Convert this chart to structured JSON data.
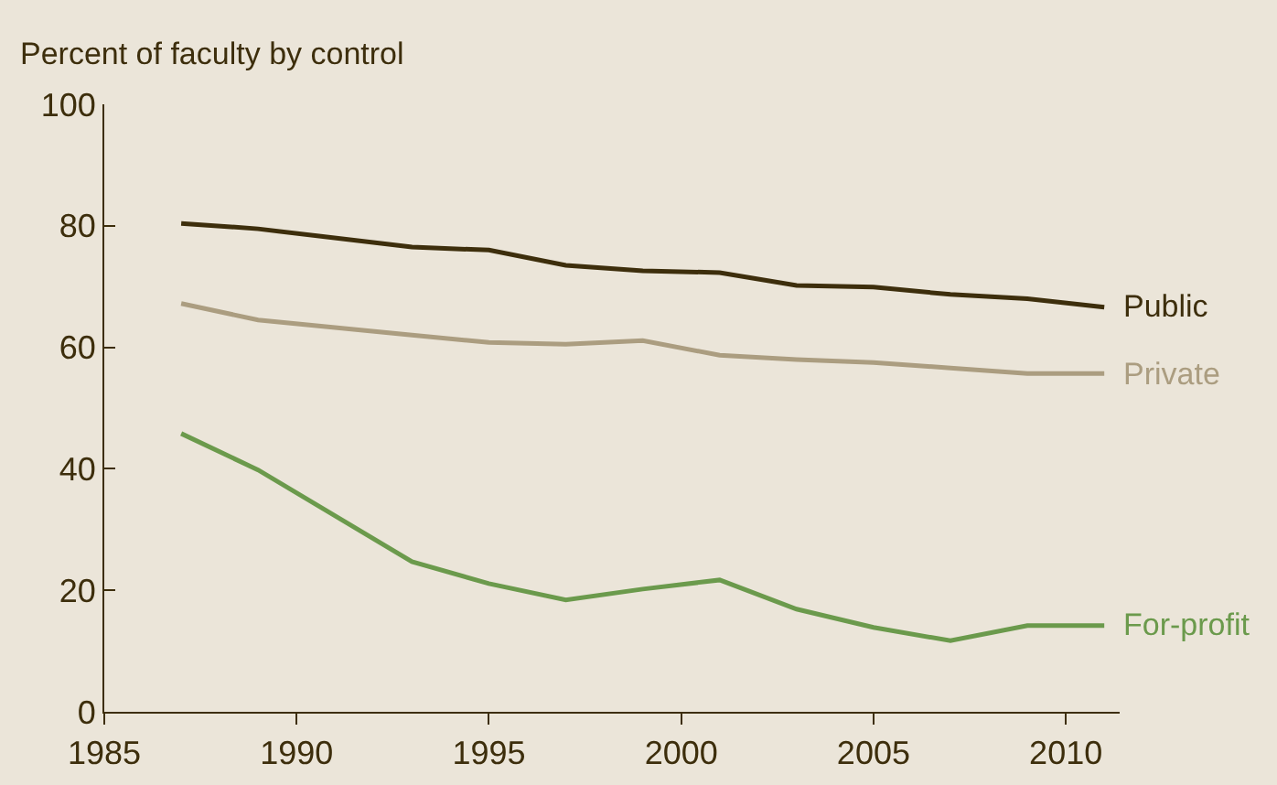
{
  "chart_data": {
    "type": "line",
    "ylabel": "Percent of faculty by control",
    "x": [
      1987,
      1989,
      1993,
      1995,
      1997,
      1999,
      2001,
      2003,
      2005,
      2007,
      2009,
      2011
    ],
    "series": [
      {
        "name": "Public",
        "color": "#3d2e0c",
        "values": [
          80.4,
          79.5,
          76.5,
          76,
          73.5,
          72.6,
          72.3,
          70.2,
          69.9,
          68.7,
          68,
          66.6
        ]
      },
      {
        "name": "Private",
        "color": "#ab9d80",
        "values": [
          67.2,
          64.5,
          62,
          60.8,
          60.5,
          61.1,
          58.7,
          58,
          57.5,
          56.6,
          55.7,
          55.7
        ]
      },
      {
        "name": "For-profit",
        "color": "#6b9a4c",
        "values": [
          45.8,
          39.8,
          24.7,
          21.1,
          18.4,
          20.2,
          21.7,
          16.9,
          13.9,
          11.7,
          14.2,
          14.2
        ]
      }
    ],
    "xlim": [
      1985,
      2011.4
    ],
    "xticks": [
      1985,
      1990,
      1995,
      2000,
      2005,
      2010
    ],
    "ylim": [
      0,
      100
    ],
    "yticks": [
      0,
      20,
      40,
      60,
      80,
      100
    ],
    "grid": false,
    "legend": false,
    "marker": "none",
    "line_style": "solid"
  }
}
